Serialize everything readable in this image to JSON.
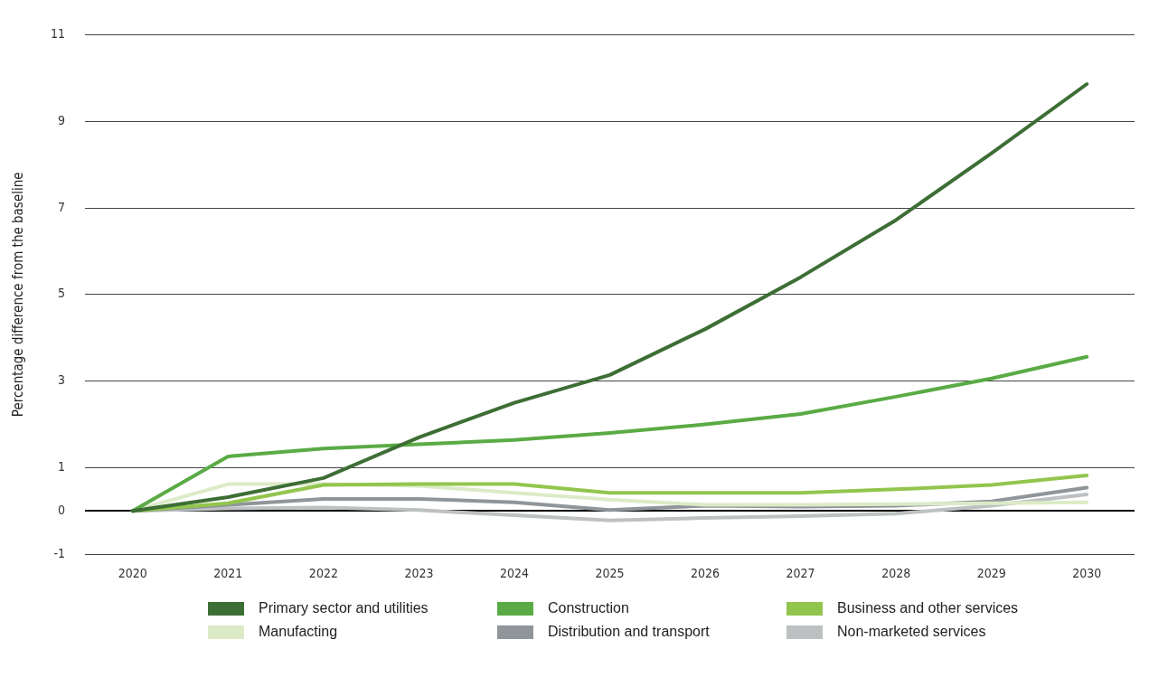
{
  "chart_data": {
    "type": "line",
    "ylabel": "Percentage difference from the baseline",
    "categories": [
      "2020",
      "2021",
      "2022",
      "2023",
      "2024",
      "2025",
      "2026",
      "2027",
      "2028",
      "2029",
      "2030"
    ],
    "series": [
      {
        "name": "Primary sector and utilities",
        "color": "#3d6e35",
        "values": [
          0,
          0.32,
          0.76,
          1.7,
          2.5,
          3.14,
          4.2,
          5.4,
          6.72,
          8.26,
          9.86
        ]
      },
      {
        "name": "Construction",
        "color": "#5aab45",
        "values": [
          0,
          1.26,
          1.44,
          1.54,
          1.64,
          1.8,
          2.0,
          2.24,
          2.64,
          3.06,
          3.56
        ]
      },
      {
        "name": "Business and other services",
        "color": "#92c54d",
        "values": [
          0,
          0.18,
          0.6,
          0.62,
          0.62,
          0.42,
          0.42,
          0.42,
          0.5,
          0.6,
          0.82
        ]
      },
      {
        "name": "Manufacting",
        "color": "#dcebc7",
        "values": [
          0,
          0.62,
          0.62,
          0.58,
          0.42,
          0.26,
          0.14,
          0.14,
          0.16,
          0.18,
          0.2
        ]
      },
      {
        "name": "Distribution and transport",
        "color": "#8f9599",
        "values": [
          0,
          0.14,
          0.28,
          0.28,
          0.2,
          0.02,
          0.12,
          0.1,
          0.12,
          0.22,
          0.54
        ]
      },
      {
        "name": "Non-marketed services",
        "color": "#bdc1c2",
        "values": [
          0,
          0.06,
          0.08,
          0.02,
          -0.1,
          -0.22,
          -0.16,
          -0.12,
          -0.06,
          0.12,
          0.38
        ]
      }
    ],
    "ylim": [
      -1,
      11
    ],
    "yticks": [
      -1,
      0,
      1,
      3,
      5,
      7,
      9,
      11
    ],
    "grid": "y",
    "legend": "bottom",
    "marker": "none",
    "line_style": "solid"
  }
}
